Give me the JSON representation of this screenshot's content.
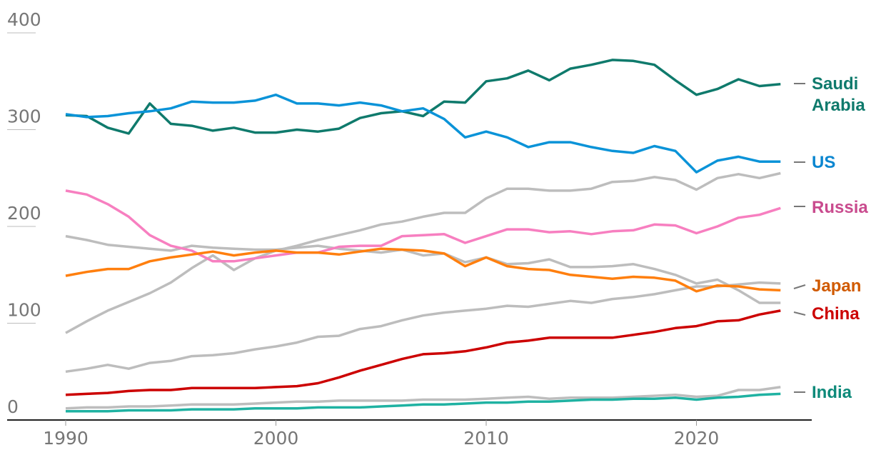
{
  "chart_data": {
    "type": "line",
    "title": "",
    "xlabel": "",
    "ylabel": "",
    "xlim": [
      1990,
      2024
    ],
    "ylim": [
      0,
      400
    ],
    "x_ticks": [
      "1990",
      "2000",
      "2010",
      "2020"
    ],
    "y_ticks": [
      "0",
      "100",
      "200",
      "300",
      "400"
    ],
    "x": [
      1990,
      1991,
      1992,
      1993,
      1994,
      1995,
      1996,
      1997,
      1998,
      1999,
      2000,
      2001,
      2002,
      2003,
      2004,
      2005,
      2006,
      2007,
      2008,
      2009,
      2010,
      2011,
      2012,
      2013,
      2014,
      2015,
      2016,
      2017,
      2018,
      2019,
      2020,
      2021,
      2022,
      2023,
      2024
    ],
    "background_series_color": "#bdbdbd",
    "background_series": [
      {
        "values": [
          190,
          186,
          181,
          179,
          177,
          175,
          180,
          178,
          177,
          176,
          176,
          178,
          180,
          177,
          175,
          173,
          176,
          170,
          172,
          163,
          168,
          161,
          162,
          166,
          158,
          158,
          159,
          161,
          156,
          150,
          141,
          145,
          134,
          121,
          121
        ]
      },
      {
        "values": [
          90,
          102,
          113,
          122,
          131,
          142,
          157,
          170,
          155,
          167,
          175,
          180,
          186,
          191,
          196,
          202,
          205,
          210,
          214,
          214,
          229,
          239,
          239,
          237,
          237,
          239,
          246,
          247,
          251,
          248,
          238,
          250,
          254,
          250,
          255
        ]
      },
      {
        "values": [
          50,
          53,
          57,
          53,
          59,
          61,
          66,
          67,
          69,
          73,
          76,
          80,
          86,
          87,
          94,
          97,
          103,
          108,
          111,
          113,
          115,
          118,
          117,
          120,
          123,
          121,
          125,
          127,
          130,
          134,
          138,
          138,
          140,
          142,
          141
        ]
      },
      {
        "values": [
          12,
          13,
          13,
          14,
          14,
          15,
          16,
          16,
          16,
          17,
          18,
          19,
          19,
          20,
          20,
          20,
          20,
          21,
          21,
          21,
          22,
          23,
          24,
          22,
          23,
          23,
          23,
          24,
          25,
          26,
          24,
          25,
          31,
          31,
          34
        ]
      }
    ],
    "series": [
      {
        "name": "Saudi Arabia",
        "label_lines": [
          "Saudi",
          "Arabia"
        ],
        "color": "#0f7a6c",
        "label_color": "#0f7a6c",
        "values": [
          315,
          314,
          302,
          296,
          327,
          306,
          304,
          299,
          302,
          297,
          297,
          300,
          298,
          301,
          312,
          317,
          319,
          314,
          329,
          328,
          350,
          353,
          361,
          351,
          363,
          367,
          372,
          371,
          367,
          351,
          336,
          342,
          352,
          345,
          347
        ]
      },
      {
        "name": "US",
        "label_lines": [
          "US"
        ],
        "color": "#0a93d8",
        "label_color": "#0a86d0",
        "values": [
          316,
          313,
          314,
          317,
          319,
          322,
          329,
          328,
          328,
          330,
          336,
          327,
          327,
          325,
          328,
          325,
          319,
          322,
          311,
          292,
          298,
          292,
          282,
          287,
          287,
          282,
          278,
          276,
          283,
          278,
          256,
          268,
          272,
          267,
          267
        ]
      },
      {
        "name": "Russia",
        "label_lines": [
          "Russia"
        ],
        "color": "#f77fc0",
        "label_color": "#c94b8e",
        "values": [
          237,
          233,
          223,
          210,
          191,
          180,
          175,
          164,
          164,
          167,
          170,
          173,
          173,
          179,
          180,
          180,
          190,
          191,
          192,
          183,
          190,
          197,
          197,
          194,
          195,
          192,
          195,
          196,
          202,
          201,
          193,
          200,
          209,
          212,
          219
        ]
      },
      {
        "name": "Japan",
        "label_lines": [
          "Japan"
        ],
        "color": "#ff7f0e",
        "label_color": "#d05a00",
        "values": [
          149,
          153,
          156,
          156,
          164,
          168,
          171,
          174,
          170,
          173,
          175,
          173,
          173,
          171,
          174,
          177,
          176,
          175,
          172,
          159,
          168,
          159,
          156,
          155,
          150,
          148,
          146,
          148,
          147,
          144,
          133,
          139,
          138,
          135,
          134
        ]
      },
      {
        "name": "China",
        "label_lines": [
          "China"
        ],
        "color": "#cc0000",
        "label_color": "#cc0000",
        "values": [
          26,
          27,
          28,
          30,
          31,
          31,
          33,
          33,
          33,
          33,
          34,
          35,
          38,
          44,
          51,
          57,
          63,
          68,
          69,
          71,
          75,
          80,
          82,
          85,
          85,
          85,
          85,
          88,
          91,
          95,
          97,
          102,
          103,
          109,
          113
        ]
      },
      {
        "name": "India",
        "label_lines": [
          "India"
        ],
        "color": "#1fb2a2",
        "label_color": "#0e8a7a",
        "values": [
          9,
          9,
          9,
          10,
          10,
          10,
          11,
          11,
          11,
          12,
          12,
          12,
          13,
          13,
          13,
          14,
          15,
          16,
          16,
          17,
          18,
          18,
          19,
          19,
          20,
          21,
          21,
          22,
          22,
          23,
          21,
          23,
          24,
          26,
          27
        ]
      }
    ]
  }
}
